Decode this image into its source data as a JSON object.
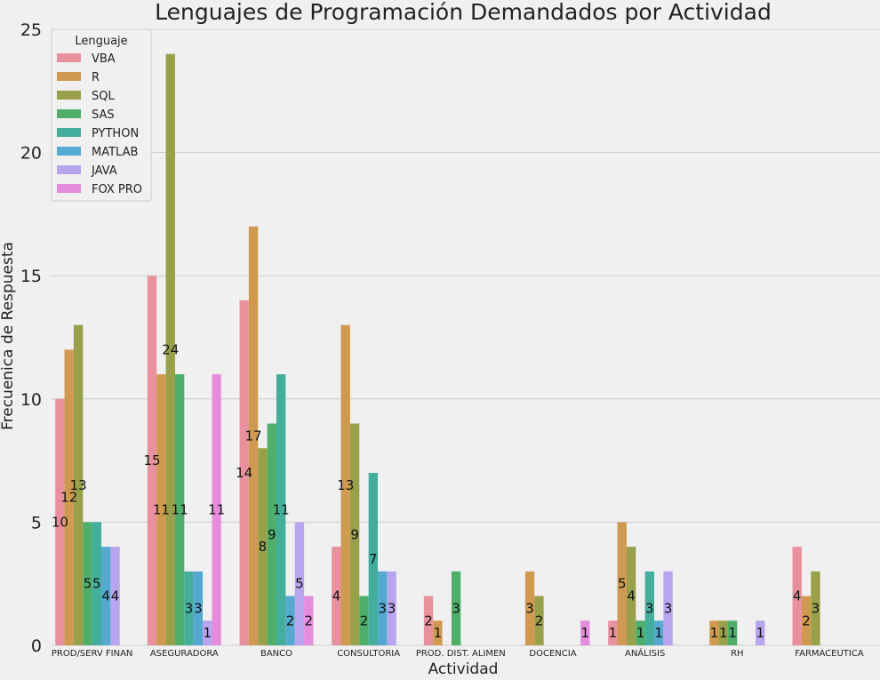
{
  "chart_data": {
    "type": "bar",
    "title": "Lenguajes de Programación Demandados por Actividad",
    "xlabel": "Actividad",
    "ylabel": "Frecuenica de Respuesta",
    "ylim": [
      0,
      25
    ],
    "yticks": [
      0,
      5,
      10,
      15,
      20,
      25
    ],
    "grid": true,
    "legend": {
      "title": "Lenguaje",
      "placement": "top-left"
    },
    "categories": [
      "PROD/SERV FINAN",
      "ASEGURADORA",
      "BANCO",
      "CONSULTORIA",
      "PROD. DIST. ALIMEN",
      "DOCENCIA",
      "ANÁLISIS",
      "RH",
      "FARMACEUTICA"
    ],
    "series": [
      {
        "name": "VBA",
        "color": "#e8919c",
        "values": [
          10,
          15,
          14,
          4,
          2,
          null,
          1,
          null,
          4
        ]
      },
      {
        "name": "R",
        "color": "#cf9a4f",
        "values": [
          12,
          11,
          17,
          13,
          1,
          3,
          5,
          1,
          2
        ]
      },
      {
        "name": "SQL",
        "color": "#99a04a",
        "values": [
          13,
          24,
          8,
          9,
          null,
          2,
          4,
          1,
          3
        ]
      },
      {
        "name": "SAS",
        "color": "#4fae6a",
        "values": [
          5,
          11,
          9,
          2,
          3,
          null,
          1,
          1,
          null
        ]
      },
      {
        "name": "PYTHON",
        "color": "#43ae9c",
        "values": [
          5,
          3,
          11,
          7,
          null,
          null,
          3,
          null,
          null
        ]
      },
      {
        "name": "MATLAB",
        "color": "#55a9d0",
        "values": [
          4,
          3,
          2,
          3,
          null,
          null,
          1,
          null,
          null
        ]
      },
      {
        "name": "JAVA",
        "color": "#b7a5ee",
        "values": [
          4,
          1,
          5,
          3,
          null,
          null,
          3,
          1,
          null
        ]
      },
      {
        "name": "FOX PRO",
        "color": "#e58ddc",
        "values": [
          null,
          11,
          2,
          null,
          null,
          1,
          null,
          null,
          null
        ]
      }
    ]
  }
}
